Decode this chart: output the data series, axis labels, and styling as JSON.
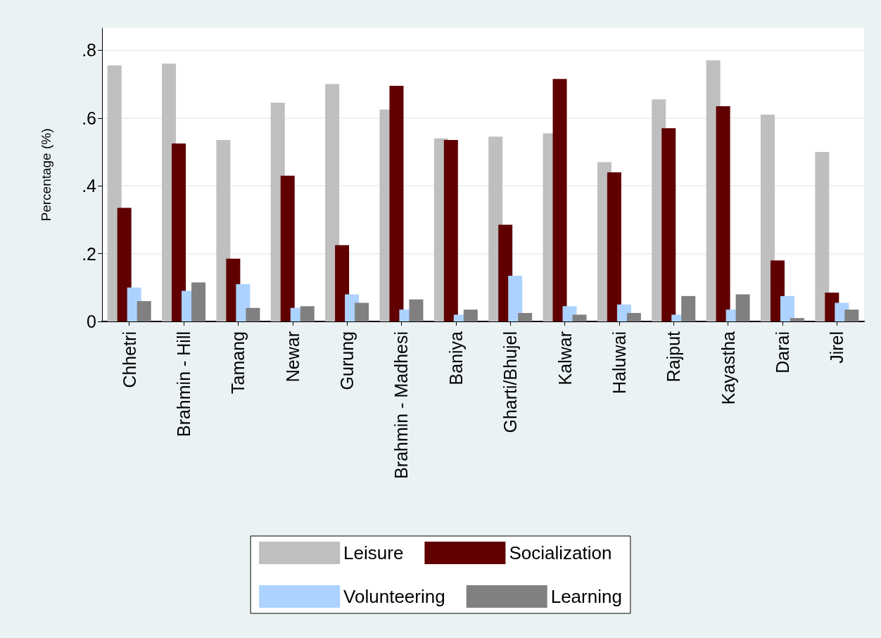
{
  "chart_data": {
    "type": "bar",
    "ylabel": "Percentage (%)",
    "categories": [
      "Chhetri",
      "Brahmin - Hill",
      "Tamang",
      "Newar",
      "Gurung",
      "Brahmin - Madhesi",
      "Baniya",
      "Gharti/Bhujel",
      "Kalwar",
      "Haluwai",
      "Rajput",
      "Kayastha",
      "Darai",
      "Jirel"
    ],
    "series": [
      {
        "name": "Leisure",
        "color": "#bfbfbf",
        "values": [
          0.755,
          0.76,
          0.535,
          0.645,
          0.7,
          0.625,
          0.54,
          0.545,
          0.555,
          0.47,
          0.655,
          0.77,
          0.61,
          0.5
        ]
      },
      {
        "name": "Socialization",
        "color": "#600000",
        "values": [
          0.335,
          0.525,
          0.185,
          0.43,
          0.225,
          0.695,
          0.535,
          0.285,
          0.715,
          0.44,
          0.57,
          0.635,
          0.18,
          0.085
        ]
      },
      {
        "name": "Volunteering",
        "color": "#acd2ff",
        "values": [
          0.1,
          0.09,
          0.11,
          0.04,
          0.08,
          0.035,
          0.02,
          0.135,
          0.045,
          0.05,
          0.02,
          0.035,
          0.075,
          0.055
        ]
      },
      {
        "name": "Learning",
        "color": "#808080",
        "values": [
          0.06,
          0.115,
          0.04,
          0.045,
          0.055,
          0.065,
          0.035,
          0.025,
          0.02,
          0.025,
          0.075,
          0.08,
          0.01,
          0.035
        ]
      }
    ],
    "ylim": [
      0,
      0.865
    ],
    "yticks": [
      0,
      {
        "value": 0.2,
        "label": ".2"
      },
      {
        "value": 0.4,
        "label": ".4"
      },
      {
        "value": 0.6,
        "label": ".6"
      },
      {
        "value": 0.8,
        "label": ".8"
      }
    ],
    "grid": "y",
    "legend": "bottom"
  }
}
